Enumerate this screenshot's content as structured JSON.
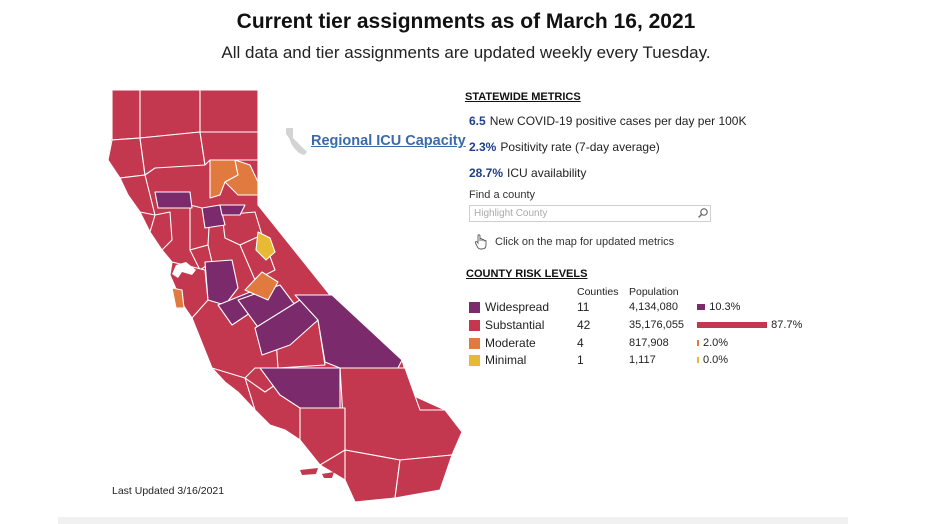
{
  "header": {
    "title": "Current tier assignments as of March 16, 2021",
    "subtitle": "All data and tier assignments are updated weekly every Tuesday."
  },
  "icu_link": {
    "label": "Regional ICU Capacity",
    "icon": "california-outline-icon"
  },
  "statewide": {
    "title": "STATEWIDE METRICS",
    "metrics": [
      {
        "value": "6.5",
        "label": "New COVID-19 positive cases per day per 100K"
      },
      {
        "value": "2.3%",
        "label": "Positivity rate (7-day average)"
      },
      {
        "value": "28.7%",
        "label": "ICU availability"
      }
    ]
  },
  "search": {
    "label": "Find a county",
    "placeholder": "Highlight County",
    "icon": "search-icon"
  },
  "hint": {
    "text": "Click on the map for updated metrics",
    "icon": "pointer-hand-icon"
  },
  "risk_levels": {
    "title": "COUNTY RISK LEVELS",
    "columns": {
      "counties": "Counties",
      "population": "Population"
    },
    "rows": [
      {
        "name": "Widespread",
        "counties": "11",
        "population": "4,134,080",
        "percent": "10.3%",
        "share": 10.3,
        "color": "#7b2a6b"
      },
      {
        "name": "Substantial",
        "counties": "42",
        "population": "35,176,055",
        "percent": "87.7%",
        "share": 87.7,
        "color": "#c3384e"
      },
      {
        "name": "Moderate",
        "counties": "4",
        "population": "817,908",
        "percent": "2.0%",
        "share": 2.0,
        "color": "#e07a3f"
      },
      {
        "name": "Minimal",
        "counties": "1",
        "population": "1,117",
        "percent": "0.0%",
        "share": 0.0,
        "color": "#e8b935"
      }
    ]
  },
  "map": {
    "tier_colors": {
      "widespread": "#7b2a6b",
      "substantial": "#c3384e",
      "moderate": "#e07a3f",
      "minimal": "#e8b935"
    },
    "border_color": "#ffffff"
  },
  "footer": {
    "last_updated": "Last Updated 3/16/2021"
  }
}
